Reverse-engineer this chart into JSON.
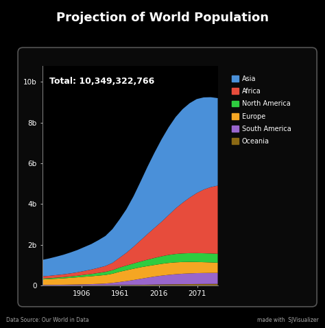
{
  "title": "Projection of World Population",
  "subtitle": "Total: 10,349,322,766",
  "bg_color": "#000000",
  "panel_bg": "#0a0a0a",
  "chart_bg": "#000000",
  "text_color": "#ffffff",
  "xlabel_ticks": [
    1906,
    1961,
    2016,
    2071
  ],
  "ylabel_values": [
    0,
    2000000000,
    4000000000,
    6000000000,
    8000000000,
    10000000000
  ],
  "ylabel_labels": [
    "0",
    "2b",
    "4b",
    "6b",
    "8b",
    "10b"
  ],
  "years": [
    1850,
    1860,
    1870,
    1880,
    1890,
    1900,
    1910,
    1920,
    1930,
    1940,
    1950,
    1960,
    1970,
    1980,
    1990,
    2000,
    2010,
    2020,
    2030,
    2040,
    2050,
    2060,
    2070,
    2080,
    2090,
    2100
  ],
  "oceania": [
    2000000,
    2100000,
    2300000,
    2600000,
    3000000,
    3600000,
    4500000,
    5500000,
    6700000,
    8000000,
    12500000,
    15800000,
    19400000,
    22800000,
    26500000,
    31000000,
    36700000,
    42700000,
    48500000,
    53800000,
    58300000,
    62200000,
    65500000,
    68000000,
    69900000,
    71000000
  ],
  "south_america": [
    20000000,
    22000000,
    25000000,
    28000000,
    33000000,
    38000000,
    46000000,
    55000000,
    67000000,
    82000000,
    110000000,
    148000000,
    192000000,
    240000000,
    295000000,
    348000000,
    397000000,
    435000000,
    468000000,
    494000000,
    514000000,
    527000000,
    536000000,
    540000000,
    542000000,
    542000000
  ],
  "europe": [
    270000000,
    284000000,
    300000000,
    316000000,
    335000000,
    355000000,
    375000000,
    388000000,
    407000000,
    421000000,
    450000000,
    504000000,
    533000000,
    556000000,
    568000000,
    570000000,
    570000000,
    580000000,
    585000000,
    583000000,
    575000000,
    562000000,
    547000000,
    531000000,
    516000000,
    500000000
  ],
  "north_america": [
    39000000,
    44000000,
    50000000,
    57000000,
    66000000,
    77000000,
    93000000,
    110000000,
    130000000,
    153000000,
    172000000,
    205000000,
    231000000,
    256000000,
    281000000,
    314000000,
    344000000,
    371000000,
    394000000,
    412000000,
    424000000,
    432000000,
    437000000,
    439000000,
    440000000,
    439000000
  ],
  "africa": [
    111000000,
    118000000,
    128000000,
    139000000,
    152000000,
    168000000,
    191000000,
    219000000,
    250000000,
    289000000,
    360000000,
    482000000,
    630000000,
    822000000,
    1040000000,
    1261000000,
    1480000000,
    1700000000,
    1960000000,
    2240000000,
    2490000000,
    2730000000,
    2950000000,
    3130000000,
    3260000000,
    3350000000
  ],
  "asia": [
    809000000,
    854000000,
    905000000,
    960000000,
    1025000000,
    1095000000,
    1175000000,
    1255000000,
    1360000000,
    1475000000,
    1660000000,
    1880000000,
    2143000000,
    2480000000,
    2885000000,
    3310000000,
    3700000000,
    4050000000,
    4310000000,
    4490000000,
    4600000000,
    4640000000,
    4620000000,
    4530000000,
    4420000000,
    4300000000
  ],
  "stack_colors": [
    "#8B6914",
    "#9966CC",
    "#F5A623",
    "#2ECC40",
    "#E74C3C",
    "#4A90D9"
  ],
  "legend_labels": [
    "Asia",
    "Africa",
    "North America",
    "Europe",
    "South America",
    "Oceania"
  ],
  "legend_colors": [
    "#4A90D9",
    "#E74C3C",
    "#2ECC40",
    "#F5A623",
    "#9966CC",
    "#8B6914"
  ],
  "footer_left": "Data Source: Our World in Data",
  "footer_right": "made with  SJVisualizer"
}
